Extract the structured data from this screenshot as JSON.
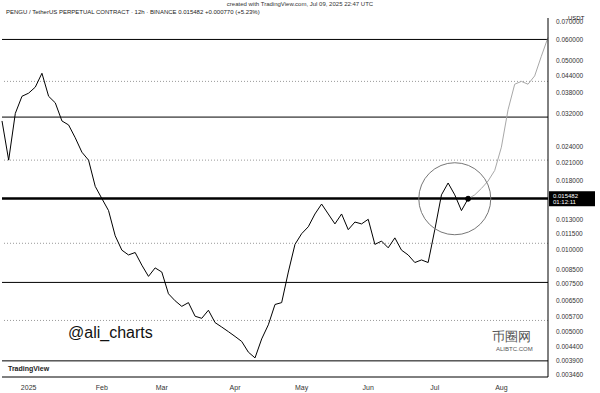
{
  "chart_data": {
    "type": "line",
    "title": "created with TradingView.com, Jul 09, 2025 22:47 UTC",
    "subtitle": "PENGU / TetherUS PERPETUAL CONTRACT · 12h · BINANCE 0.015482 +0.000770 (+5.23%)",
    "y_label": "USDT",
    "annotations": [
      "01:12:11",
      "@ali_charts",
      "TradingView",
      "币圈网",
      "ALIBTC.COM"
    ],
    "log": "y",
    "grid": false,
    "ylim": [
      0.0034,
      0.072
    ],
    "yticks": [
      {
        "value": 0.07,
        "label": "0.070000"
      },
      {
        "value": 0.06,
        "label": "0.060000"
      },
      {
        "value": 0.05,
        "label": "0.050000"
      },
      {
        "value": 0.044,
        "label": "0.044000"
      },
      {
        "value": 0.038,
        "label": "0.038000"
      },
      {
        "value": 0.032,
        "label": "0.032000"
      },
      {
        "value": 0.024,
        "label": "0.024000"
      },
      {
        "value": 0.021,
        "label": "0.021000"
      },
      {
        "value": 0.018,
        "label": "0.018000"
      },
      {
        "value": 0.013,
        "label": "0.013000"
      },
      {
        "value": 0.0115,
        "label": "0.011500"
      },
      {
        "value": 0.01,
        "label": "0.010000"
      },
      {
        "value": 0.0085,
        "label": "0.008500"
      },
      {
        "value": 0.0075,
        "label": "0.007500"
      },
      {
        "value": 0.0065,
        "label": "0.006500"
      },
      {
        "value": 0.0057,
        "label": "0.005700"
      },
      {
        "value": 0.005,
        "label": "0.005000"
      },
      {
        "value": 0.0044,
        "label": "0.004400"
      },
      {
        "value": 0.0039,
        "label": "0.003900"
      },
      {
        "value": 0.00346,
        "label": "0.003460"
      }
    ],
    "levels": [
      0.06,
      0.031,
      0.0076,
      0.0039
    ],
    "key_level": 0.0155,
    "minor_levels": [
      0.042,
      0.0215,
      0.0106,
      0.0055
    ],
    "categories": [
      null,
      null,
      null,
      null,
      "2025",
      null,
      null,
      null,
      null,
      null,
      null,
      null,
      null,
      null,
      null,
      "Feb",
      null,
      null,
      null,
      null,
      null,
      null,
      null,
      null,
      "Mar",
      null,
      null,
      null,
      null,
      null,
      null,
      null,
      null,
      null,
      null,
      "Apr",
      null,
      null,
      null,
      null,
      null,
      null,
      null,
      null,
      null,
      "May",
      null,
      null,
      null,
      null,
      null,
      null,
      null,
      null,
      null,
      "Jun",
      null,
      null,
      null,
      null,
      null,
      null,
      null,
      null,
      null,
      "Jul",
      null,
      null,
      null,
      null,
      null,
      null,
      null,
      null,
      null,
      "Aug",
      null,
      null,
      null,
      null,
      null,
      null,
      null
    ],
    "series": [
      {
        "color": "#000000",
        "line_style": "solid",
        "values": [
          0.03,
          0.0215,
          0.032,
          0.037,
          0.038,
          0.04,
          0.045,
          0.037,
          0.035,
          0.03,
          0.029,
          0.026,
          0.023,
          0.0215,
          0.0172,
          0.0155,
          0.014,
          0.0113,
          0.01,
          0.0096,
          0.0098,
          0.0088,
          0.008,
          0.0086,
          0.0083,
          0.0069,
          0.0065,
          0.0062,
          0.0064,
          0.0057,
          0.0056,
          0.006,
          0.0054,
          0.0052,
          0.005,
          0.0048,
          0.0046,
          0.0042,
          0.004,
          0.0047,
          0.0053,
          0.0063,
          0.0064,
          0.0083,
          0.0105,
          0.0115,
          0.0122,
          0.0136,
          0.0148,
          0.0136,
          0.0125,
          0.0136,
          0.0119,
          0.0127,
          0.0125,
          0.013,
          0.0105,
          0.0108,
          0.0102,
          0.0111,
          0.01,
          0.0096,
          0.009,
          0.0092,
          0.009,
          0.0119,
          0.016,
          0.0177,
          0.016,
          0.014,
          0.015482,
          null,
          null,
          null,
          null,
          null,
          null,
          null,
          null,
          null,
          null,
          null,
          null
        ]
      },
      {
        "color": "#a8a8a8",
        "line_style": "solid",
        "values": [
          null,
          null,
          null,
          null,
          null,
          null,
          null,
          null,
          null,
          null,
          null,
          null,
          null,
          null,
          null,
          null,
          null,
          null,
          null,
          null,
          null,
          null,
          null,
          null,
          null,
          null,
          null,
          null,
          null,
          null,
          null,
          null,
          null,
          null,
          null,
          null,
          null,
          null,
          null,
          null,
          null,
          null,
          null,
          null,
          null,
          null,
          null,
          null,
          null,
          null,
          null,
          null,
          null,
          null,
          null,
          null,
          null,
          null,
          null,
          null,
          null,
          null,
          null,
          null,
          null,
          null,
          null,
          null,
          null,
          null,
          0.015482,
          0.016,
          0.0169,
          0.018,
          0.0197,
          0.024,
          0.033,
          0.041,
          0.042,
          0.041,
          0.044,
          0.052,
          0.061
        ]
      }
    ]
  }
}
